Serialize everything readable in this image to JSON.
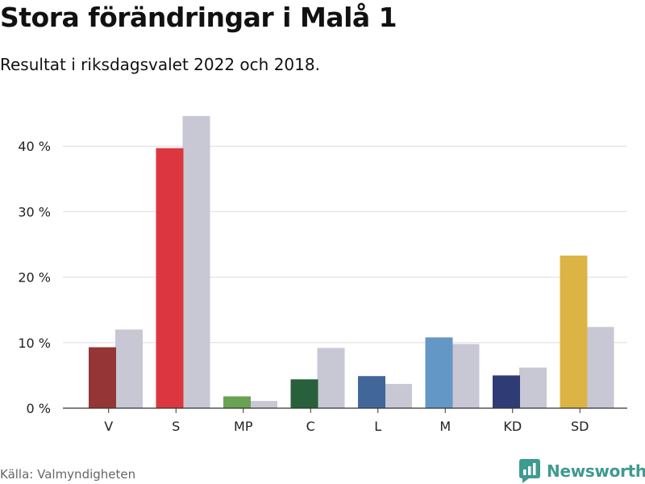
{
  "header": {
    "title": "Stora förändringar i Malå 1",
    "subtitle": "Resultat i riksdagsvalet 2022 och 2018."
  },
  "footer": {
    "source": "Källa: Valmyndigheten",
    "brand": "Newsworthy",
    "brand_icon": "newsworthy-logo-icon",
    "brand_color": "#3f9a8f"
  },
  "chart_data": {
    "type": "bar",
    "categories": [
      "V",
      "S",
      "MP",
      "C",
      "L",
      "M",
      "KD",
      "SD"
    ],
    "series": [
      {
        "name": "2022",
        "values": [
          9.3,
          39.7,
          1.8,
          4.4,
          4.9,
          10.8,
          5.0,
          23.3
        ],
        "colors": [
          "#953535",
          "#dc3740",
          "#68a252",
          "#27603a",
          "#41679a",
          "#6397c6",
          "#2f3b75",
          "#dcb445"
        ]
      },
      {
        "name": "2018",
        "values": [
          12.0,
          44.6,
          1.1,
          9.2,
          3.7,
          9.8,
          6.2,
          12.4
        ],
        "color": "#c8c7d4"
      }
    ],
    "yticks": [
      0,
      10,
      20,
      30,
      40
    ],
    "ytick_labels": [
      "0 %",
      "10 %",
      "20 %",
      "30 %",
      "40 %"
    ],
    "ylim": [
      0,
      47
    ],
    "grid": true,
    "xlabel": "",
    "ylabel": ""
  }
}
